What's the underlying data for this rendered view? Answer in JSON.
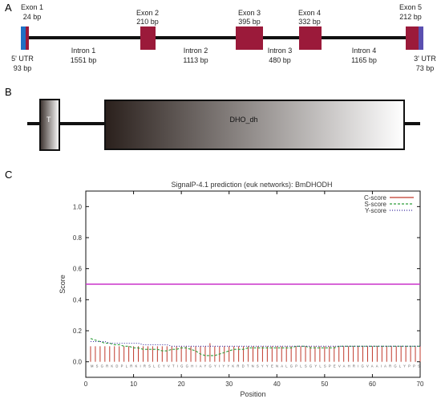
{
  "panels": {
    "a": {
      "letter": "A",
      "exons": [
        {
          "name": "Exon 1",
          "size": "24 bp"
        },
        {
          "name": "Exon 2",
          "size": "210 bp"
        },
        {
          "name": "Exon 3",
          "size": "395 bp"
        },
        {
          "name": "Exon 4",
          "size": "332 bp"
        },
        {
          "name": "Exon 5",
          "size": "212 bp"
        }
      ],
      "introns": [
        {
          "name": "Intron 1",
          "size": "1551 bp"
        },
        {
          "name": "Intron 2",
          "size": "1113 bp"
        },
        {
          "name": "Intron 3",
          "size": "480 bp"
        },
        {
          "name": "Intron 4",
          "size": "1165 bp"
        }
      ],
      "utr5": {
        "name": "5' UTR",
        "size": "93 bp"
      },
      "utr3": {
        "name": "3' UTR",
        "size": "73 bp"
      },
      "colors": {
        "exon": "#9b1a3a",
        "utr5": "#1f6fc4",
        "utr3": "#5a4fb0",
        "line": "#111111"
      }
    },
    "b": {
      "letter": "B",
      "domain_small": "T",
      "domain_large": "DHO_dh"
    },
    "c": {
      "letter": "C"
    }
  },
  "chart_data": {
    "type": "line",
    "title": "SignalP-4.1 prediction (euk networks): BmDHODH",
    "xlabel": "Position",
    "ylabel": "Score",
    "xlim": [
      0,
      70
    ],
    "ylim": [
      -0.1,
      1.1
    ],
    "xticks": [
      0,
      10,
      20,
      30,
      40,
      50,
      60,
      70
    ],
    "yticks": [
      0.0,
      0.2,
      0.4,
      0.6,
      0.8,
      1.0
    ],
    "yticklabels": [
      "0.0",
      "0.2",
      "0.4",
      "0.6",
      "0.8",
      "1.0"
    ],
    "grid": false,
    "legend_position": "top-right",
    "threshold": 0.5,
    "sequence": "MSGRKDPLRKIRSLCYVTIGGHIAYGYIYYKRDTNSYYENALGPLSGYLSPEVAHRIGVAAIARGLYPPS",
    "series": [
      {
        "name": "C-score",
        "color": "#c0392b",
        "style": "solid",
        "values": [
          0.1,
          0.1,
          0.1,
          0.1,
          0.1,
          0.1,
          0.1,
          0.1,
          0.1,
          0.1,
          0.1,
          0.1,
          0.1,
          0.1,
          0.1,
          0.1,
          0.1,
          0.1,
          0.1,
          0.1,
          0.1,
          0.1,
          0.1,
          0.1,
          0.1,
          0.12,
          0.1,
          0.1,
          0.1,
          0.1,
          0.1,
          0.1,
          0.1,
          0.1,
          0.1,
          0.1,
          0.1,
          0.1,
          0.1,
          0.1,
          0.1,
          0.1,
          0.1,
          0.1,
          0.1,
          0.1,
          0.1,
          0.1,
          0.1,
          0.1,
          0.1,
          0.1,
          0.1,
          0.1,
          0.1,
          0.1,
          0.1,
          0.1,
          0.1,
          0.1,
          0.1,
          0.1,
          0.1,
          0.1,
          0.1,
          0.1,
          0.1,
          0.1,
          0.1,
          0.1
        ]
      },
      {
        "name": "S-score",
        "color": "#2e9e3a",
        "style": "dashed",
        "values": [
          0.15,
          0.14,
          0.13,
          0.12,
          0.12,
          0.11,
          0.11,
          0.1,
          0.1,
          0.09,
          0.09,
          0.08,
          0.08,
          0.08,
          0.08,
          0.07,
          0.07,
          0.08,
          0.08,
          0.09,
          0.09,
          0.08,
          0.07,
          0.05,
          0.04,
          0.04,
          0.04,
          0.05,
          0.06,
          0.07,
          0.08,
          0.08,
          0.08,
          0.09,
          0.09,
          0.09,
          0.09,
          0.09,
          0.09,
          0.09,
          0.09,
          0.09,
          0.09,
          0.1,
          0.1,
          0.1,
          0.09,
          0.09,
          0.09,
          0.09,
          0.09,
          0.09,
          0.1,
          0.1,
          0.1,
          0.1,
          0.1,
          0.1,
          0.1,
          0.1,
          0.1,
          0.1,
          0.1,
          0.1,
          0.1,
          0.1,
          0.1,
          0.1,
          0.1,
          0.1
        ]
      },
      {
        "name": "Y-score",
        "color": "#3a2fa0",
        "style": "dotted",
        "values": [
          0.13,
          0.13,
          0.13,
          0.13,
          0.12,
          0.12,
          0.12,
          0.12,
          0.12,
          0.12,
          0.12,
          0.11,
          0.11,
          0.11,
          0.11,
          0.11,
          0.11,
          0.1,
          0.1,
          0.1,
          0.1,
          0.1,
          0.1,
          0.1,
          0.1,
          0.1,
          0.1,
          0.1,
          0.1,
          0.1,
          0.1,
          0.1,
          0.1,
          0.1,
          0.1,
          0.1,
          0.1,
          0.1,
          0.1,
          0.1,
          0.1,
          0.1,
          0.1,
          0.1,
          0.1,
          0.1,
          0.1,
          0.1,
          0.1,
          0.1,
          0.1,
          0.1,
          0.1,
          0.1,
          0.1,
          0.1,
          0.1,
          0.1,
          0.1,
          0.1,
          0.1,
          0.1,
          0.1,
          0.1,
          0.1,
          0.1,
          0.1,
          0.1,
          0.1,
          0.1
        ]
      }
    ],
    "threshold_color": "#cc33cc"
  }
}
